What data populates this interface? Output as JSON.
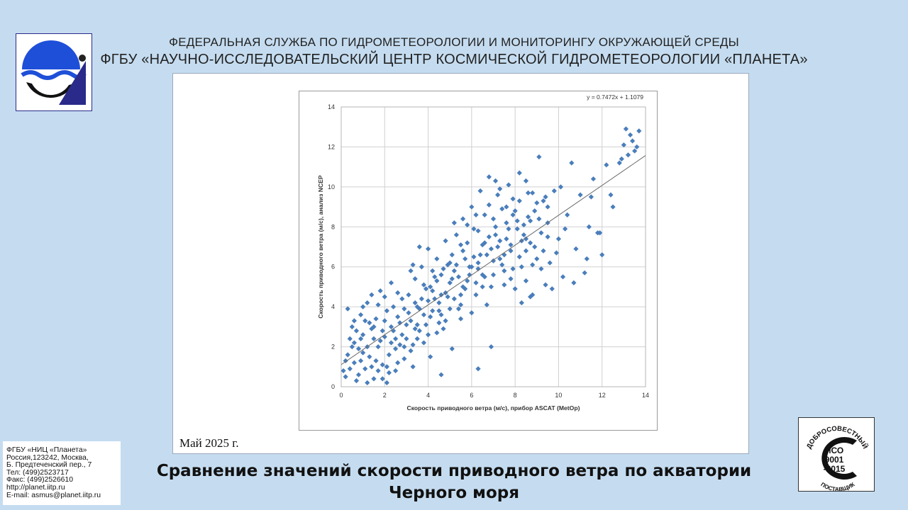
{
  "header": {
    "line1": "ФЕДЕРАЛЬНАЯ СЛУЖБА ПО ГИДРОМЕТЕОРОЛОГИИ И МОНИТОРИНГУ ОКРУЖАЮЩЕЙ СРЕДЫ",
    "line2": "ФГБУ «НАУЧНО-ИССЛЕДОВАТЕЛЬСКИЙ ЦЕНТР КОСМИЧЕСКОЙ ГИДРОМЕТЕОРОЛОГИИ «ПЛАНЕТА»"
  },
  "date": "Май 2025 г.",
  "contact": [
    "ФГБУ «НИЦ «Планета»",
    "Россия,123242, Москва,",
    "Б. Предтеченский пер., 7",
    "Тел:   (499)2523717",
    "Факс: (499)2526610",
    "http://planet.iitp.ru",
    "E-mail: asmus@planet.iitp.ru"
  ],
  "caption": {
    "line1": "Сравнение значений скорости приводного ветра по акватории",
    "line2": "Черного моря"
  },
  "iso_badge": {
    "top_text": "ДОБРОСОВЕСТНЫЙ",
    "bottom_text": "ПОСТАВЩИК",
    "line1": "ИСО",
    "line2": "9001",
    "line3": "-2015"
  },
  "colors": {
    "background": "#c5dcf0",
    "logo_blue": "#1e4fd8",
    "marker": "#4a7ebb",
    "trendline": "#6b6b6b"
  },
  "chart_data": {
    "type": "scatter",
    "xlabel": "Скорость приводного ветра (м/с), прибор ASCAT (MetOp)",
    "ylabel": "Скорость приводного ветра (м/с), анализ NCEP",
    "xlim": [
      0,
      14
    ],
    "ylim": [
      0,
      14
    ],
    "xticks": [
      0,
      2,
      4,
      6,
      8,
      10,
      12,
      14
    ],
    "yticks": [
      0,
      2,
      4,
      6,
      8,
      10,
      12,
      14
    ],
    "grid": true,
    "trendline": {
      "slope": 0.7472,
      "intercept": 1.1079,
      "x_range": [
        0,
        14
      ],
      "label": "y = 0.7472x + 1.1079"
    },
    "marker": "diamond",
    "series": [
      {
        "points": [
          [
            0.1,
            0.8
          ],
          [
            0.2,
            0.5
          ],
          [
            0.3,
            1.6
          ],
          [
            0.4,
            2.4
          ],
          [
            0.5,
            3.0
          ],
          [
            0.6,
            1.2
          ],
          [
            0.7,
            0.3
          ],
          [
            0.8,
            1.9
          ],
          [
            0.9,
            3.6
          ],
          [
            1.0,
            2.6
          ],
          [
            1.1,
            0.9
          ],
          [
            1.2,
            4.2
          ],
          [
            1.3,
            1.5
          ],
          [
            1.4,
            2.9
          ],
          [
            1.5,
            0.4
          ],
          [
            1.6,
            3.4
          ],
          [
            1.7,
            2.0
          ],
          [
            1.8,
            4.8
          ],
          [
            1.9,
            1.1
          ],
          [
            2.0,
            2.5
          ],
          [
            2.1,
            3.8
          ],
          [
            2.2,
            1.6
          ],
          [
            2.3,
            5.2
          ],
          [
            2.4,
            2.8
          ],
          [
            2.5,
            0.8
          ],
          [
            2.6,
            3.5
          ],
          [
            2.7,
            2.1
          ],
          [
            2.8,
            4.4
          ],
          [
            2.9,
            1.4
          ],
          [
            3.0,
            3.1
          ],
          [
            0.3,
            3.9
          ],
          [
            0.6,
            2.2
          ],
          [
            0.9,
            1.3
          ],
          [
            1.2,
            2.0
          ],
          [
            1.5,
            3.0
          ],
          [
            1.8,
            2.3
          ],
          [
            2.1,
            1.0
          ],
          [
            2.4,
            4.0
          ],
          [
            2.7,
            3.2
          ],
          [
            3.0,
            2.4
          ],
          [
            3.1,
            4.6
          ],
          [
            3.2,
            3.3
          ],
          [
            3.3,
            2.1
          ],
          [
            3.4,
            5.4
          ],
          [
            3.5,
            4.0
          ],
          [
            3.6,
            2.8
          ],
          [
            3.7,
            6.0
          ],
          [
            3.8,
            3.6
          ],
          [
            3.9,
            4.9
          ],
          [
            4.0,
            2.6
          ],
          [
            4.1,
            5.0
          ],
          [
            4.2,
            3.8
          ],
          [
            4.3,
            4.4
          ],
          [
            4.4,
            6.4
          ],
          [
            4.5,
            3.2
          ],
          [
            4.6,
            5.6
          ],
          [
            4.7,
            2.9
          ],
          [
            4.8,
            4.7
          ],
          [
            4.9,
            6.1
          ],
          [
            5.0,
            3.9
          ],
          [
            3.2,
            5.8
          ],
          [
            3.4,
            4.2
          ],
          [
            3.6,
            7.0
          ],
          [
            3.8,
            5.1
          ],
          [
            4.0,
            6.9
          ],
          [
            4.2,
            4.8
          ],
          [
            4.4,
            5.3
          ],
          [
            4.6,
            3.6
          ],
          [
            4.8,
            7.3
          ],
          [
            5.0,
            5.2
          ],
          [
            5.1,
            6.6
          ],
          [
            5.2,
            4.4
          ],
          [
            5.3,
            7.6
          ],
          [
            5.4,
            5.5
          ],
          [
            5.5,
            3.4
          ],
          [
            5.6,
            6.8
          ],
          [
            5.7,
            4.9
          ],
          [
            5.8,
            8.1
          ],
          [
            5.9,
            6.0
          ],
          [
            6.0,
            3.7
          ],
          [
            6.1,
            6.5
          ],
          [
            6.2,
            5.2
          ],
          [
            6.3,
            7.8
          ],
          [
            6.4,
            9.8
          ],
          [
            6.5,
            5.6
          ],
          [
            6.6,
            7.2
          ],
          [
            6.7,
            4.1
          ],
          [
            6.8,
            10.5
          ],
          [
            6.9,
            6.9
          ],
          [
            7.0,
            8.4
          ],
          [
            5.2,
            8.2
          ],
          [
            5.5,
            7.1
          ],
          [
            5.8,
            5.3
          ],
          [
            6.0,
            9.0
          ],
          [
            6.3,
            6.2
          ],
          [
            6.6,
            8.6
          ],
          [
            6.9,
            2.0
          ],
          [
            7.0,
            5.6
          ],
          [
            7.1,
            7.6
          ],
          [
            7.2,
            9.6
          ],
          [
            7.3,
            6.4
          ],
          [
            7.4,
            8.9
          ],
          [
            7.5,
            5.1
          ],
          [
            7.6,
            7.4
          ],
          [
            7.7,
            10.1
          ],
          [
            7.8,
            6.8
          ],
          [
            7.9,
            8.6
          ],
          [
            8.0,
            4.9
          ],
          [
            8.1,
            7.9
          ],
          [
            8.2,
            9.3
          ],
          [
            8.3,
            6.0
          ],
          [
            8.4,
            8.1
          ],
          [
            8.5,
            5.3
          ],
          [
            8.6,
            9.7
          ],
          [
            8.7,
            7.2
          ],
          [
            8.8,
            4.6
          ],
          [
            8.9,
            8.8
          ],
          [
            9.0,
            6.4
          ],
          [
            9.1,
            11.5
          ],
          [
            9.2,
            7.7
          ],
          [
            9.3,
            9.3
          ],
          [
            9.4,
            5.1
          ],
          [
            9.5,
            8.2
          ],
          [
            9.6,
            6.2
          ],
          [
            9.8,
            9.8
          ],
          [
            10.0,
            7.4
          ],
          [
            10.2,
            5.5
          ],
          [
            10.4,
            8.6
          ],
          [
            10.6,
            11.2
          ],
          [
            10.8,
            6.9
          ],
          [
            11.0,
            9.6
          ],
          [
            11.2,
            5.7
          ],
          [
            11.4,
            8.0
          ],
          [
            11.6,
            10.4
          ],
          [
            11.8,
            7.7
          ],
          [
            12.0,
            6.6
          ],
          [
            12.2,
            11.1
          ],
          [
            12.5,
            9.0
          ],
          [
            12.8,
            11.2
          ],
          [
            13.0,
            12.1
          ],
          [
            13.1,
            12.9
          ],
          [
            13.2,
            11.6
          ],
          [
            13.4,
            12.3
          ],
          [
            13.5,
            11.8
          ],
          [
            13.7,
            12.8
          ],
          [
            13.6,
            12.0
          ],
          [
            13.3,
            12.6
          ],
          [
            12.9,
            11.4
          ],
          [
            12.4,
            9.6
          ],
          [
            11.5,
            9.5
          ],
          [
            11.9,
            7.7
          ],
          [
            11.3,
            6.4
          ],
          [
            10.7,
            5.2
          ],
          [
            10.3,
            7.9
          ],
          [
            9.9,
            6.7
          ],
          [
            10.1,
            10.0
          ],
          [
            9.7,
            4.9
          ],
          [
            8.7,
            4.5
          ],
          [
            8.3,
            4.2
          ],
          [
            7.8,
            5.4
          ],
          [
            0.2,
            1.3
          ],
          [
            0.5,
            2.0
          ],
          [
            0.8,
            0.6
          ],
          [
            1.0,
            1.7
          ],
          [
            1.3,
            3.2
          ],
          [
            1.6,
            1.3
          ],
          [
            1.9,
            2.8
          ],
          [
            2.2,
            0.7
          ],
          [
            2.5,
            1.9
          ],
          [
            2.8,
            2.6
          ],
          [
            0.4,
            0.9
          ],
          [
            0.7,
            2.8
          ],
          [
            1.0,
            4.0
          ],
          [
            1.4,
            1.0
          ],
          [
            1.7,
            4.1
          ],
          [
            2.0,
            3.3
          ],
          [
            2.3,
            2.2
          ],
          [
            2.6,
            1.2
          ],
          [
            2.9,
            3.9
          ],
          [
            3.2,
            1.8
          ],
          [
            3.4,
            2.9
          ],
          [
            3.6,
            3.9
          ],
          [
            3.8,
            2.2
          ],
          [
            4.0,
            4.3
          ],
          [
            4.2,
            5.8
          ],
          [
            4.4,
            2.7
          ],
          [
            4.6,
            4.6
          ],
          [
            4.8,
            3.3
          ],
          [
            5.0,
            6.2
          ],
          [
            5.2,
            5.8
          ],
          [
            5.4,
            3.9
          ],
          [
            5.6,
            5.0
          ],
          [
            5.8,
            7.2
          ],
          [
            6.0,
            6.0
          ],
          [
            6.2,
            4.6
          ],
          [
            6.4,
            6.6
          ],
          [
            6.6,
            5.5
          ],
          [
            6.8,
            7.5
          ],
          [
            7.0,
            6.3
          ],
          [
            7.2,
            7.0
          ],
          [
            7.4,
            6.1
          ],
          [
            7.6,
            8.2
          ],
          [
            7.8,
            7.1
          ],
          [
            8.0,
            8.8
          ],
          [
            8.2,
            6.5
          ],
          [
            8.4,
            7.6
          ],
          [
            8.6,
            8.5
          ],
          [
            8.8,
            6.1
          ],
          [
            9.0,
            9.2
          ],
          [
            9.2,
            5.9
          ],
          [
            1.1,
            3.3
          ],
          [
            1.4,
            4.6
          ],
          [
            1.7,
            0.8
          ],
          [
            2.0,
            4.5
          ],
          [
            2.3,
            3.0
          ],
          [
            2.6,
            4.7
          ],
          [
            2.9,
            2.0
          ],
          [
            3.1,
            3.7
          ],
          [
            3.3,
            6.1
          ],
          [
            3.5,
            2.4
          ],
          [
            3.7,
            4.4
          ],
          [
            3.9,
            3.1
          ],
          [
            4.1,
            3.5
          ],
          [
            4.3,
            5.5
          ],
          [
            4.5,
            4.2
          ],
          [
            4.7,
            5.9
          ],
          [
            4.9,
            4.5
          ],
          [
            5.1,
            5.4
          ],
          [
            5.3,
            6.1
          ],
          [
            5.5,
            4.6
          ],
          [
            5.7,
            6.4
          ],
          [
            5.9,
            5.6
          ],
          [
            6.1,
            7.9
          ],
          [
            6.3,
            5.9
          ],
          [
            6.5,
            7.1
          ],
          [
            6.7,
            6.6
          ],
          [
            6.9,
            5.0
          ],
          [
            7.1,
            8.0
          ],
          [
            7.3,
            7.3
          ],
          [
            7.5,
            6.6
          ],
          [
            7.7,
            7.9
          ],
          [
            7.9,
            5.9
          ],
          [
            8.1,
            8.3
          ],
          [
            8.3,
            7.3
          ],
          [
            8.5,
            6.8
          ],
          [
            8.7,
            8.3
          ],
          [
            8.9,
            7.0
          ],
          [
            9.1,
            8.4
          ],
          [
            9.3,
            6.8
          ],
          [
            9.5,
            9.0
          ],
          [
            4.6,
            0.6
          ],
          [
            6.3,
            0.9
          ],
          [
            5.1,
            1.9
          ],
          [
            4.1,
            1.5
          ],
          [
            3.3,
            1.0
          ],
          [
            2.1,
            0.2
          ],
          [
            1.9,
            0.4
          ],
          [
            1.2,
            0.2
          ],
          [
            0.9,
            2.4
          ],
          [
            0.6,
            3.3
          ],
          [
            1.5,
            2.4
          ],
          [
            2.5,
            2.4
          ],
          [
            3.5,
            3.1
          ],
          [
            4.5,
            3.8
          ],
          [
            5.5,
            4.1
          ],
          [
            6.5,
            5.0
          ],
          [
            7.5,
            5.8
          ],
          [
            8.5,
            7.4
          ],
          [
            9.5,
            7.5
          ],
          [
            6.8,
            9.1
          ],
          [
            7.1,
            10.3
          ],
          [
            7.9,
            9.4
          ],
          [
            8.2,
            10.7
          ],
          [
            6.2,
            8.6
          ],
          [
            5.6,
            8.4
          ],
          [
            7.6,
            9.0
          ],
          [
            8.8,
            9.7
          ],
          [
            9.4,
            9.5
          ],
          [
            8.5,
            10.3
          ],
          [
            7.3,
            9.9
          ]
        ]
      }
    ]
  }
}
